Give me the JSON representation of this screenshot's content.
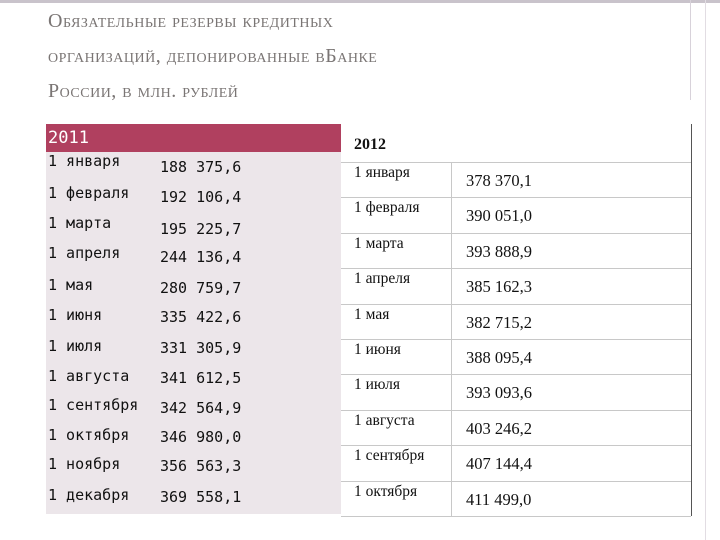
{
  "title": {
    "line1": "Обязательные резервы кредитных",
    "line2": "организаций, депонированные вБанке",
    "line3": "России, в млн. рублей"
  },
  "table2011": {
    "header": "2011",
    "rows": [
      {
        "month": "1 января",
        "value": "188 375,6"
      },
      {
        "month": "1 февраля",
        "value": "192 106,4"
      },
      {
        "month": "1 марта",
        "value": "195 225,7"
      },
      {
        "month": "1 апреля",
        "value": "244 136,4"
      },
      {
        "month": "1 мая",
        "value": "280 759,7"
      },
      {
        "month": "1 июня",
        "value": "335 422,6"
      },
      {
        "month": "1 июля",
        "value": "331 305,9"
      },
      {
        "month": "1 августа",
        "value": "341 612,5"
      },
      {
        "month": "1 сентября",
        "value": "342 564,9"
      },
      {
        "month": "1 октября",
        "value": "346 980,0"
      },
      {
        "month": "1 ноября",
        "value": "356 563,3"
      },
      {
        "month": "1 декабря",
        "value": "369 558,1"
      }
    ]
  },
  "table2012": {
    "header": "2012",
    "rows": [
      {
        "month": "1 января",
        "value": "378 370,1"
      },
      {
        "month": "1 февраля",
        "value": "390 051,0"
      },
      {
        "month": "1 марта",
        "value": "393 888,9"
      },
      {
        "month": "1 апреля",
        "value": "385 162,3"
      },
      {
        "month": "1 мая",
        "value": "382 715,2"
      },
      {
        "month": "1 июня",
        "value": "388 095,4"
      },
      {
        "month": "1 июля",
        "value": "393 093,6"
      },
      {
        "month": "1 августа",
        "value": "403 246,2"
      },
      {
        "month": "1 сентября",
        "value": "407 144,4"
      },
      {
        "month": "1 октября",
        "value": "411 499,0"
      }
    ]
  },
  "colors": {
    "title_text": "#7a7574",
    "header_2011_bg": "#b0405f",
    "body_2011_bg": "#ece6ea"
  }
}
